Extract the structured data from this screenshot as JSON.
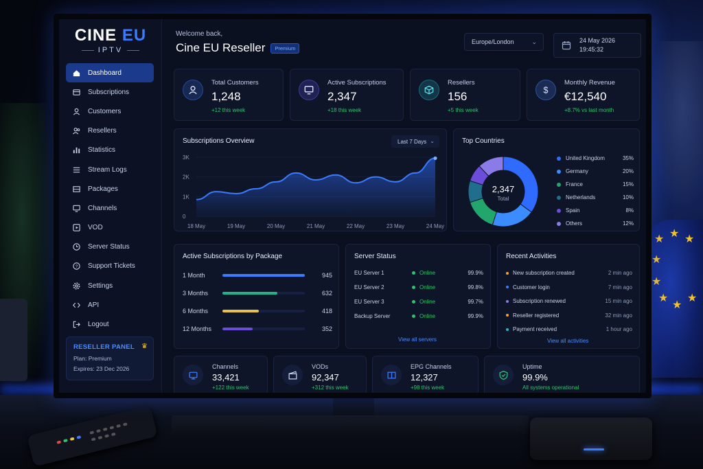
{
  "brand": {
    "logo_main": "CINE",
    "logo_accent": "EU",
    "logo_sub": "IPTV"
  },
  "header": {
    "welcome": "Welcome back,",
    "title": "Cine EU Reseller",
    "badge": "Premium",
    "timezone": "Europe/London",
    "date": "24 May 2026",
    "time": "19:45:32"
  },
  "sidebar": {
    "items": [
      {
        "label": "Dashboard",
        "icon": "home-icon"
      },
      {
        "label": "Subscriptions",
        "icon": "card-icon"
      },
      {
        "label": "Customers",
        "icon": "user-icon"
      },
      {
        "label": "Resellers",
        "icon": "users-icon"
      },
      {
        "label": "Statistics",
        "icon": "bar-chart-icon"
      },
      {
        "label": "Stream Logs",
        "icon": "list-icon"
      },
      {
        "label": "Packages",
        "icon": "package-icon"
      },
      {
        "label": "Channels",
        "icon": "monitor-icon"
      },
      {
        "label": "VOD",
        "icon": "play-icon"
      },
      {
        "label": "Server Status",
        "icon": "server-icon"
      },
      {
        "label": "Support Tickets",
        "icon": "help-icon"
      },
      {
        "label": "Settings",
        "icon": "gear-icon"
      },
      {
        "label": "API",
        "icon": "code-icon"
      },
      {
        "label": "Logout",
        "icon": "logout-icon"
      }
    ],
    "panel": {
      "title": "RESELLER PANEL",
      "plan": "Plan: Premium",
      "expires": "Expires: 23 Dec 2026"
    }
  },
  "stats": [
    {
      "label": "Total Customers",
      "value": "1,248",
      "change": "+12 this week",
      "icon": "user-icon",
      "color": "#3a7bff"
    },
    {
      "label": "Active Subscriptions",
      "value": "2,347",
      "change": "+18 this week",
      "icon": "monitor-icon",
      "color": "#6b5cff"
    },
    {
      "label": "Resellers",
      "value": "156",
      "change": "+5 this week",
      "icon": "cube-icon",
      "color": "#22b8c8"
    },
    {
      "label": "Monthly Revenue",
      "value": "€12,540",
      "change": "+8.7% vs last month",
      "icon": "dollar-icon",
      "color": "#4d8bff"
    }
  ],
  "overview": {
    "title": "Subscriptions Overview",
    "range": "Last 7 Days",
    "chart_data": {
      "type": "area",
      "categories": [
        "18 May",
        "19 May",
        "20 May",
        "21 May",
        "22 May",
        "23 May",
        "24 May"
      ],
      "y_ticks": [
        "3K",
        "2K",
        "1K",
        "0"
      ],
      "x": [
        0,
        0.5,
        1,
        1.5,
        2,
        2.5,
        3,
        3.5,
        4,
        4.5,
        5,
        5.5,
        6
      ],
      "values": [
        850,
        1250,
        1150,
        1400,
        1750,
        2200,
        1850,
        2100,
        1700,
        2000,
        1750,
        2200,
        2950
      ],
      "ylim": [
        0,
        3000
      ]
    }
  },
  "countries": {
    "title": "Top Countries",
    "total_value": "2,347",
    "total_label": "Total",
    "chart_data": {
      "type": "pie",
      "labels": [
        "United Kingdom",
        "Germany",
        "France",
        "Netherlands",
        "Spain",
        "Others"
      ],
      "pct_labels": [
        "35%",
        "20%",
        "15%",
        "10%",
        "8%",
        "12%"
      ],
      "values": [
        35,
        20,
        15,
        10,
        8,
        12
      ],
      "colors": [
        "#2f6bff",
        "#3a8cff",
        "#22a66b",
        "#1f6f8c",
        "#6b4cdb",
        "#8a7be8"
      ]
    }
  },
  "packages": {
    "title": "Active Subscriptions by Package",
    "rows": [
      {
        "name": "1 Month",
        "count": "945",
        "frac": 1.0,
        "color": "#3a7bff"
      },
      {
        "name": "3 Months",
        "count": "632",
        "frac": 0.67,
        "color": "#22b38a"
      },
      {
        "name": "6 Months",
        "count": "418",
        "frac": 0.44,
        "color": "#e8c34a"
      },
      {
        "name": "12 Months",
        "count": "352",
        "frac": 0.37,
        "color": "#6b4cdb"
      }
    ]
  },
  "servers": {
    "title": "Server Status",
    "rows": [
      {
        "name": "EU Server 1",
        "status": "Online",
        "uptime": "99.9%"
      },
      {
        "name": "EU Server 2",
        "status": "Online",
        "uptime": "99.8%"
      },
      {
        "name": "EU Server 3",
        "status": "Online",
        "uptime": "99.7%"
      },
      {
        "name": "Backup Server",
        "status": "Online",
        "uptime": "99.9%"
      }
    ],
    "link": "View all servers"
  },
  "activities": {
    "title": "Recent Activities",
    "rows": [
      {
        "text": "New subscription created",
        "time": "2 min ago",
        "color": "#f2a33a"
      },
      {
        "text": "Customer login",
        "time": "7 min ago",
        "color": "#3a7bff"
      },
      {
        "text": "Subscription renewed",
        "time": "15 min ago",
        "color": "#8a7be8"
      },
      {
        "text": "Reseller registered",
        "time": "32 min ago",
        "color": "#f2a33a"
      },
      {
        "text": "Payment received",
        "time": "1 hour ago",
        "color": "#22b8c8"
      }
    ],
    "link": "View all activities"
  },
  "bottom": [
    {
      "label": "Channels",
      "value": "33,421",
      "change": "+122 this week",
      "icon": "tv-icon",
      "color": "#3a7bff"
    },
    {
      "label": "VODs",
      "value": "92,347",
      "change": "+312 this week",
      "icon": "clapper-icon",
      "color": "#c9d2ea"
    },
    {
      "label": "EPG Channels",
      "value": "12,327",
      "change": "+98 this week",
      "icon": "book-icon",
      "color": "#3a7bff"
    },
    {
      "label": "Uptime",
      "value": "99.9%",
      "change": "All systems operational",
      "icon": "shield-icon",
      "color": "#32c26c"
    }
  ]
}
